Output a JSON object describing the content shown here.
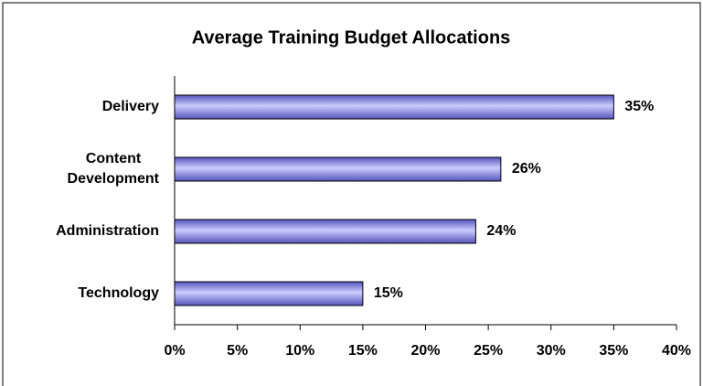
{
  "chart_data": {
    "type": "bar",
    "orientation": "horizontal",
    "title": "Average Training Budget Allocations",
    "categories": [
      "Delivery",
      "Content\nDevelopment",
      "Administration",
      "Technology"
    ],
    "values": [
      35,
      26,
      24,
      15
    ],
    "value_labels": [
      "35%",
      "26%",
      "24%",
      "15%"
    ],
    "color": "#9999ff",
    "xlim": [
      0,
      40
    ],
    "xticks": [
      {
        "value": 0,
        "label": "0%"
      },
      {
        "value": 5,
        "label": "5%"
      },
      {
        "value": 10,
        "label": "10%"
      },
      {
        "value": 15,
        "label": "15%"
      },
      {
        "value": 20,
        "label": "20%"
      },
      {
        "value": 25,
        "label": "25%"
      },
      {
        "value": 30,
        "label": "30%"
      },
      {
        "value": 35,
        "label": "35%"
      },
      {
        "value": 40,
        "label": "40%"
      }
    ],
    "grid": false
  }
}
